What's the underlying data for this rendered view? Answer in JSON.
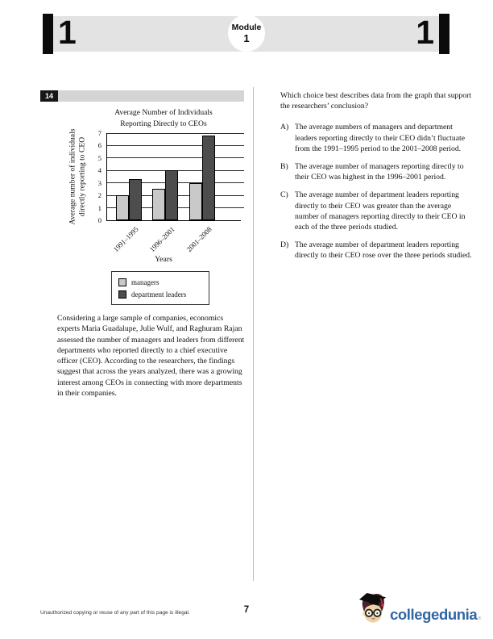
{
  "header": {
    "left_number": "1",
    "right_number": "1",
    "module_label": "Module",
    "module_number": "1"
  },
  "question": {
    "number": "14",
    "stem": "Which choice best describes data from the graph that support the researchers’ conclusion?",
    "choices": [
      {
        "letter": "A)",
        "text": "The average numbers of managers and department leaders reporting directly to their CEO didn’t fluctuate from the 1991–1995 period to the 2001–2008 period."
      },
      {
        "letter": "B)",
        "text": "The average number of managers reporting directly to their CEO was highest in the 1996–2001 period."
      },
      {
        "letter": "C)",
        "text": "The average number of department leaders reporting directly to their CEO was greater than the average number of managers reporting directly to their CEO in each of the three periods studied."
      },
      {
        "letter": "D)",
        "text": "The average number of department leaders reporting directly to their CEO rose over the three periods studied."
      }
    ]
  },
  "passage": {
    "text": "Considering a large sample of companies, economics experts Maria Guadalupe, Julie Wulf, and Raghuram Rajan assessed the number of managers and leaders from different departments who reported directly to a chief executive officer (CEO). According to the researchers, the findings suggest that across the years analyzed, there was a growing interest among CEOs in connecting with more departments in their companies."
  },
  "chart_data": {
    "type": "bar",
    "title_lines": [
      "Average Number of Individuals",
      "Reporting Directly to CEOs"
    ],
    "title": "Average Number of Individuals Reporting Directly to CEOs",
    "ylabel_lines": [
      "Average number of individuals",
      "directly reporting to CEO"
    ],
    "ylabel": "Average number of individuals directly reporting to CEO",
    "xlabel": "Years",
    "categories": [
      "1991–1995",
      "1996–2001",
      "2001–2008"
    ],
    "series": [
      {
        "name": "managers",
        "color": "#c9c9c9",
        "values": [
          2,
          2.5,
          3
        ]
      },
      {
        "name": "department leaders",
        "color": "#4d4d4d",
        "values": [
          3.3,
          4,
          6.8
        ]
      }
    ],
    "ylim": [
      0,
      7
    ],
    "yticks": [
      0,
      1,
      2,
      3,
      4,
      5,
      6,
      7
    ],
    "grid": true,
    "legend_position": "below"
  },
  "footer": {
    "copyright": "Unauthorized copying or reuse of any part of this page is illegal.",
    "page_number": "7",
    "brand": "collegedunia",
    "brand_color": "#2f66a3",
    "reg_mark": "®"
  }
}
